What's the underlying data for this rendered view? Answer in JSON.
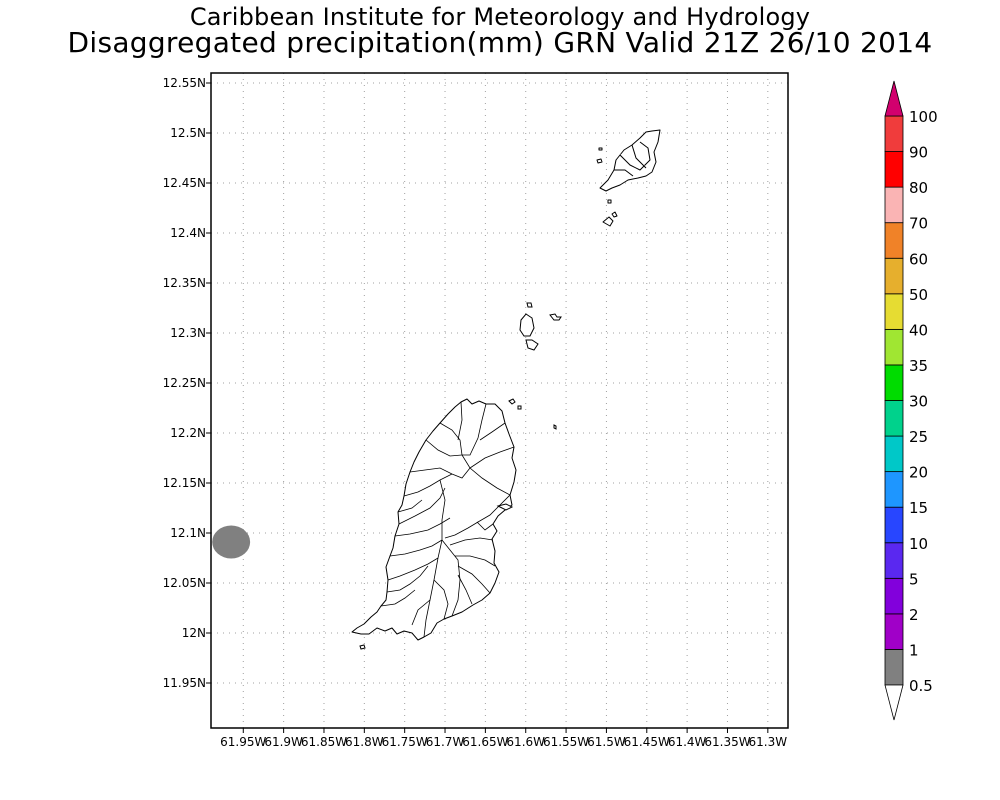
{
  "title": {
    "line1": "Caribbean Institute for Meteorology and Hydrology",
    "line2": "Disaggregated precipitation(mm) GRN Valid 21Z 26/10 2014"
  },
  "map": {
    "projection": "lat-lon",
    "lat_range": [
      11.905,
      12.56
    ],
    "lon_range": [
      -61.99,
      -61.275
    ],
    "grid": true,
    "lat_ticks": [
      {
        "value": 12.55,
        "label": "12.55N"
      },
      {
        "value": 12.5,
        "label": "12.5N"
      },
      {
        "value": 12.45,
        "label": "12.45N"
      },
      {
        "value": 12.4,
        "label": "12.4N"
      },
      {
        "value": 12.35,
        "label": "12.35N"
      },
      {
        "value": 12.3,
        "label": "12.3N"
      },
      {
        "value": 12.25,
        "label": "12.25N"
      },
      {
        "value": 12.2,
        "label": "12.2N"
      },
      {
        "value": 12.15,
        "label": "12.15N"
      },
      {
        "value": 12.1,
        "label": "12.1N"
      },
      {
        "value": 12.05,
        "label": "12.05N"
      },
      {
        "value": 12.0,
        "label": "12N"
      },
      {
        "value": 11.95,
        "label": "11.95N"
      }
    ],
    "lon_ticks": [
      {
        "value": -61.95,
        "label": "61.95W"
      },
      {
        "value": -61.9,
        "label": "61.9W"
      },
      {
        "value": -61.85,
        "label": "61.85W"
      },
      {
        "value": -61.8,
        "label": "61.8W"
      },
      {
        "value": -61.75,
        "label": "61.75W"
      },
      {
        "value": -61.7,
        "label": "61.7W"
      },
      {
        "value": -61.65,
        "label": "61.65W"
      },
      {
        "value": -61.6,
        "label": "61.6W"
      },
      {
        "value": -61.55,
        "label": "61.55W"
      },
      {
        "value": -61.5,
        "label": "61.5W"
      },
      {
        "value": -61.45,
        "label": "61.45W"
      },
      {
        "value": -61.4,
        "label": "61.4W"
      },
      {
        "value": -61.35,
        "label": "61.35W"
      },
      {
        "value": -61.3,
        "label": "61.3W"
      }
    ],
    "precip_areas": [
      {
        "center_lon": -61.965,
        "center_lat": 12.091,
        "radius_lon": 0.0235,
        "radius_lat": 0.0165,
        "category": "0.5-1",
        "color": "#808080"
      }
    ],
    "coastline_color": "#000000",
    "land_fill": "#ffffff"
  },
  "colorbar": {
    "labels": [
      "0.5",
      "1",
      "2",
      "5",
      "10",
      "15",
      "20",
      "25",
      "30",
      "35",
      "40",
      "50",
      "60",
      "70",
      "80",
      "90",
      "100"
    ],
    "colors": [
      "#808080",
      "#a000c8",
      "#8200dc",
      "#5a28f0",
      "#2846ff",
      "#1e96ff",
      "#00c8c8",
      "#00d28c",
      "#00dc00",
      "#a0e632",
      "#e6dc32",
      "#e6af2d",
      "#f08228",
      "#fab4b4",
      "#ff0000",
      "#f03c3c"
    ],
    "lower_arrow_color": "#ffffff",
    "upper_arrow_color": "#d2006e"
  }
}
